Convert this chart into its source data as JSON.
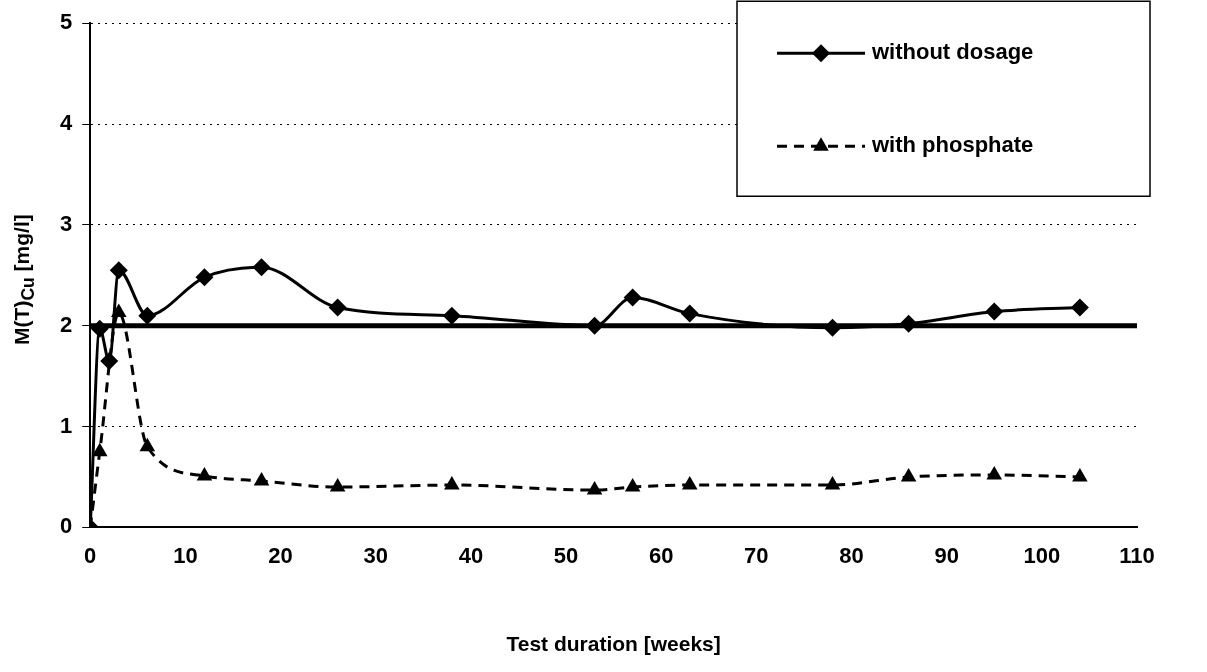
{
  "chart_data": {
    "type": "line",
    "xlabel": "Test duration [weeks]",
    "ylabel": "M(T)$_{Cu}$ [mg/l]",
    "xlim": [
      0,
      110
    ],
    "xticks": [
      0,
      10,
      20,
      30,
      40,
      50,
      60,
      70,
      80,
      90,
      100,
      110
    ],
    "ylim": [
      0,
      5
    ],
    "yticks": [
      0,
      1,
      2,
      3,
      4,
      5
    ],
    "grid": "y",
    "legend": "top right",
    "ref_lines": [
      {
        "axis": "y",
        "value": 2,
        "color": "#000000",
        "line_style": "solid"
      }
    ],
    "series": [
      {
        "name": "without dosage",
        "color": "#000000",
        "marker": "diamond",
        "line_style": "solid",
        "x": [
          0,
          1,
          2,
          3,
          6,
          12,
          18,
          26,
          38,
          53,
          57,
          63,
          78,
          86,
          95,
          104
        ],
        "values": [
          0,
          1.97,
          1.65,
          2.55,
          2.1,
          2.48,
          2.58,
          2.18,
          2.1,
          2.0,
          2.28,
          2.12,
          1.98,
          2.02,
          2.14,
          2.18
        ]
      },
      {
        "name": "with phosphate",
        "color": "#000000",
        "marker": "triangle",
        "line_style": "dashed",
        "x": [
          0,
          1,
          3,
          6,
          12,
          18,
          26,
          38,
          53,
          57,
          63,
          78,
          86,
          95,
          104
        ],
        "values": [
          0,
          0.75,
          2.13,
          0.8,
          0.51,
          0.46,
          0.4,
          0.42,
          0.37,
          0.4,
          0.42,
          0.42,
          0.5,
          0.52,
          0.5
        ]
      }
    ]
  }
}
